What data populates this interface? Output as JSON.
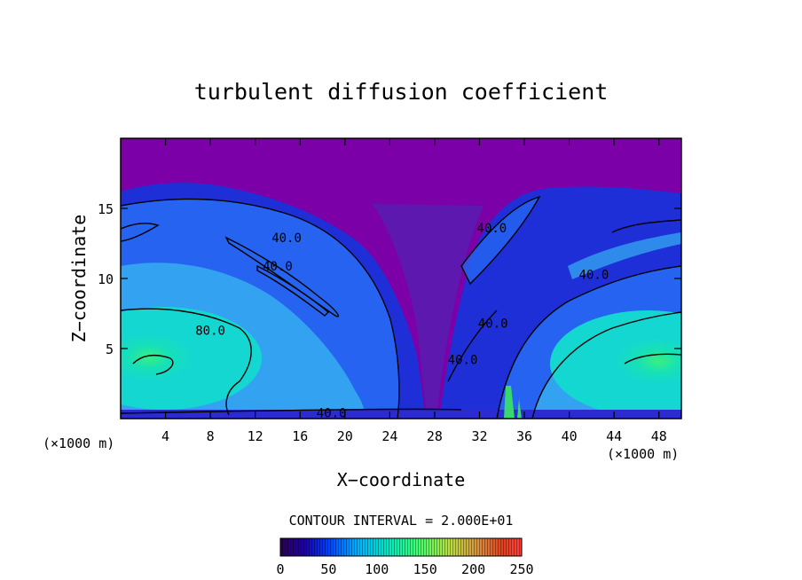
{
  "chart_data": {
    "type": "heatmap",
    "title": "turbulent diffusion coefficient",
    "xlabel": "X−coordinate",
    "ylabel": "Z−coordinate",
    "x_unit_left": "(×1000 m)",
    "x_unit_right": "(×1000 m)",
    "xlim": [
      0,
      50
    ],
    "ylim": [
      0,
      20
    ],
    "x_ticks": [
      4,
      8,
      12,
      16,
      20,
      24,
      28,
      32,
      36,
      40,
      44,
      48
    ],
    "y_ticks": [
      5,
      10,
      15
    ],
    "contour_interval_text": "CONTOUR INTERVAL = 2.000E+01",
    "contour_labels": [
      {
        "text": "40.0",
        "x": 14.8,
        "z": 12.9
      },
      {
        "text": "40.0",
        "x": 14.0,
        "z": 10.9
      },
      {
        "text": "80.0",
        "x": 8.0,
        "z": 6.3
      },
      {
        "text": "40.0",
        "x": 18.8,
        "z": 0.4
      },
      {
        "text": "40.0",
        "x": 33.1,
        "z": 13.6
      },
      {
        "text": "40.0",
        "x": 42.2,
        "z": 10.3
      },
      {
        "text": "40.0",
        "x": 33.2,
        "z": 6.8
      },
      {
        "text": "40.0",
        "x": 30.5,
        "z": 4.2
      }
    ],
    "colorbar": {
      "range": [
        0,
        250
      ],
      "tick_values": [
        0,
        50,
        100,
        150,
        200,
        250
      ],
      "tick_labels": [
        "0",
        "50",
        "100",
        "150",
        "200",
        "250"
      ],
      "colormap": [
        "#2b0050",
        "#1b00a8",
        "#0040ff",
        "#00b0ff",
        "#00e8c0",
        "#40ff70",
        "#b8e040",
        "#d89040",
        "#e04020",
        "#ff4040"
      ]
    },
    "colors": {
      "upper_layer": "#7c00a8",
      "strong_blue": "#1f2fd8",
      "mid_blue": "#2563f0",
      "light_blue": "#33a2f0",
      "cyan": "#14d7d2",
      "green": "#38f080",
      "bottom_band": "#2b2bd0"
    }
  }
}
